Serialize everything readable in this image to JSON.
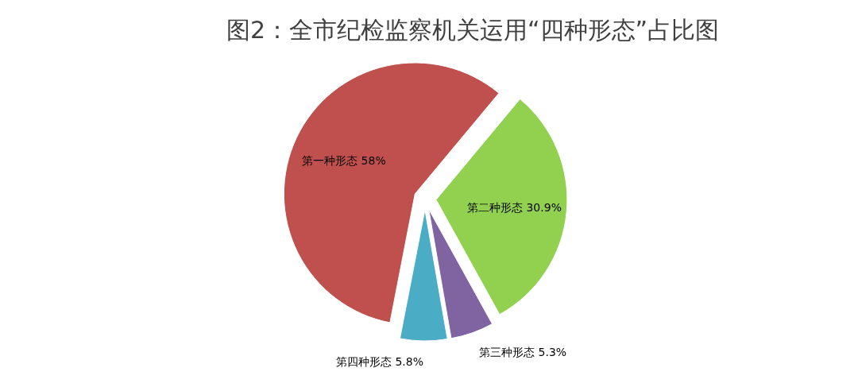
{
  "chart_data": {
    "type": "pie",
    "title": "图2：全市纪检监察机关运用“四种形态”占比图",
    "categories": [
      "第一种形态",
      "第二种形态",
      "第三种形态",
      "第四种形态"
    ],
    "values": [
      58,
      30.9,
      5.3,
      5.8
    ],
    "value_labels": [
      "58%",
      "30.9%",
      "5.3%",
      "5.8%"
    ],
    "colors": [
      "#c0504d",
      "#92d050",
      "#8064a2",
      "#4bacc6"
    ],
    "legend": false
  }
}
